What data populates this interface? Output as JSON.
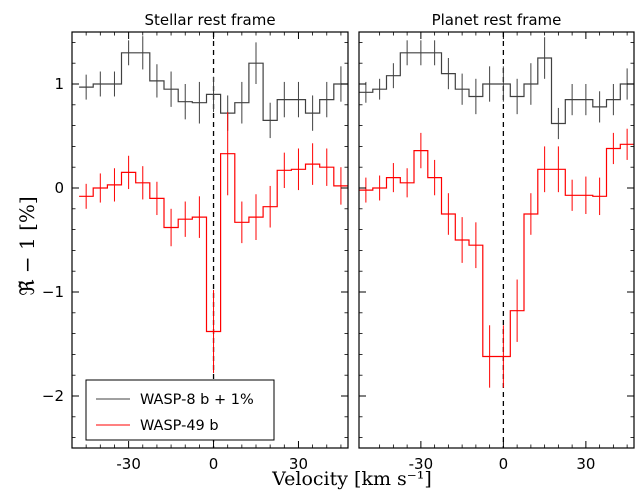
{
  "chart_data": [
    {
      "type": "line",
      "title": "Stellar rest frame",
      "xlabel": "Velocity [km s⁻¹]",
      "ylabel": "ℜ̃ − 1 [%]",
      "xlim": [
        -50,
        47.5
      ],
      "ylim": [
        -2.5,
        1.5
      ],
      "xticks": [
        -30,
        0,
        30
      ],
      "xtick_labels": [
        "-30",
        "0",
        "30"
      ],
      "yticks": [
        1,
        0,
        -1,
        -2
      ],
      "ytick_labels": [
        "1",
        "0",
        "−1",
        "−2"
      ],
      "vline": 0,
      "grid": false,
      "legend_position": "bottom-left",
      "series": [
        {
          "name": "WASP-8 b + 1%",
          "color": "#404040",
          "x": [
            -45,
            -40,
            -35,
            -30,
            -25,
            -20,
            -15,
            -10,
            -5,
            0,
            5,
            10,
            15,
            20,
            25,
            30,
            35,
            40,
            45
          ],
          "y": [
            0.97,
            1.0,
            1.0,
            1.3,
            1.3,
            1.03,
            0.95,
            0.83,
            0.82,
            0.9,
            0.72,
            0.82,
            1.2,
            0.65,
            0.85,
            0.85,
            0.72,
            0.85,
            1.0
          ],
          "err": [
            0.12,
            0.12,
            0.12,
            0.12,
            0.16,
            0.16,
            0.17,
            0.17,
            0.2,
            0.17,
            0.17,
            0.2,
            0.2,
            0.17,
            0.17,
            0.17,
            0.17,
            0.17,
            0.17
          ]
        },
        {
          "name": "WASP-49 b",
          "color": "#ff0000",
          "x": [
            -45,
            -40,
            -35,
            -30,
            -25,
            -20,
            -15,
            -10,
            -5,
            0,
            5,
            10,
            15,
            20,
            25,
            30,
            35,
            40,
            45
          ],
          "y": [
            -0.08,
            0.0,
            0.03,
            0.15,
            0.05,
            -0.1,
            -0.38,
            -0.3,
            -0.28,
            -1.38,
            0.33,
            -0.33,
            -0.28,
            -0.18,
            0.17,
            0.18,
            0.23,
            0.2,
            0.02
          ],
          "err": [
            0.12,
            0.14,
            0.16,
            0.16,
            0.16,
            0.16,
            0.18,
            0.17,
            0.2,
            0.4,
            0.4,
            0.2,
            0.22,
            0.2,
            0.17,
            0.2,
            0.2,
            0.18,
            0.18
          ]
        }
      ]
    },
    {
      "type": "line",
      "title": "Planet rest frame",
      "xlabel": "Velocity [km s⁻¹]",
      "xlim": [
        -52.5,
        47.5
      ],
      "ylim": [
        -2.5,
        1.5
      ],
      "xticks": [
        -30,
        0,
        30
      ],
      "xtick_labels": [
        "-30",
        "0",
        "30"
      ],
      "vline": 0,
      "grid": false,
      "series": [
        {
          "name": "WASP-8 b + 1%",
          "color": "#404040",
          "x": [
            -50,
            -45,
            -40,
            -35,
            -30,
            -25,
            -20,
            -15,
            -10,
            -5,
            0,
            5,
            10,
            15,
            20,
            25,
            30,
            35,
            40,
            45
          ],
          "y": [
            0.92,
            0.95,
            1.08,
            1.3,
            1.3,
            1.3,
            1.1,
            0.95,
            0.88,
            1.0,
            1.0,
            0.88,
            1.0,
            1.25,
            0.62,
            0.85,
            0.85,
            0.78,
            0.85,
            1.0
          ],
          "err": [
            0.1,
            0.1,
            0.12,
            0.12,
            0.12,
            0.12,
            0.15,
            0.15,
            0.17,
            0.17,
            0.17,
            0.17,
            0.2,
            0.2,
            0.15,
            0.15,
            0.15,
            0.15,
            0.15,
            0.15
          ]
        },
        {
          "name": "WASP-49 b",
          "color": "#ff0000",
          "x": [
            -50,
            -45,
            -40,
            -35,
            -30,
            -25,
            -20,
            -15,
            -10,
            -5,
            0,
            5,
            10,
            15,
            20,
            25,
            30,
            35,
            40,
            45
          ],
          "y": [
            -0.02,
            0.0,
            0.1,
            0.05,
            0.36,
            0.1,
            -0.25,
            -0.5,
            -0.55,
            -1.62,
            -1.62,
            -1.18,
            -0.25,
            0.18,
            0.18,
            -0.07,
            -0.07,
            -0.08,
            0.38,
            0.42
          ],
          "err": [
            0.12,
            0.12,
            0.14,
            0.14,
            0.17,
            0.17,
            0.2,
            0.22,
            0.22,
            0.3,
            0.3,
            0.3,
            0.2,
            0.22,
            0.22,
            0.15,
            0.18,
            0.18,
            0.15,
            0.15
          ]
        }
      ]
    }
  ]
}
